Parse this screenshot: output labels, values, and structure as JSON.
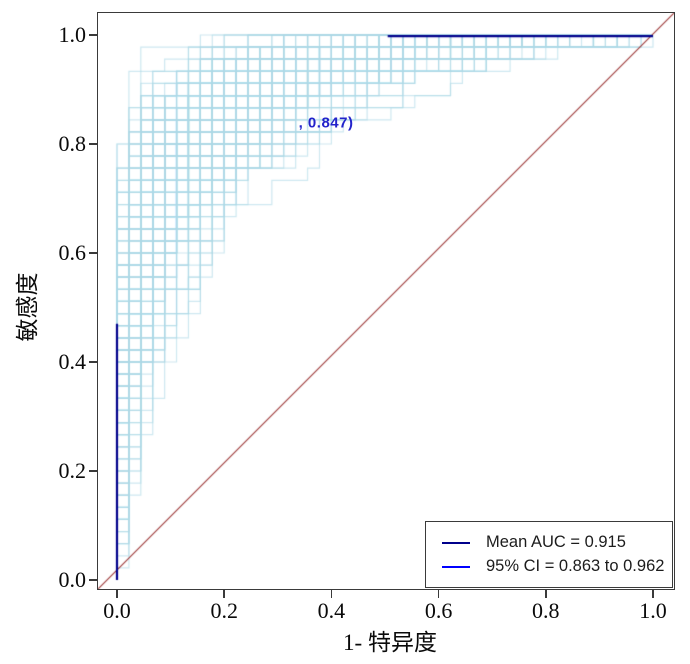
{
  "chart_data": {
    "type": "line",
    "subtype": "bootstrap-roc-curves",
    "title": "",
    "xlabel": "1- 特异度",
    "ylabel": "敏感度",
    "xlim": [
      0.0,
      1.0
    ],
    "ylim": [
      0.0,
      1.0
    ],
    "x_ticks": [
      "0.0",
      "0.2",
      "0.4",
      "0.6",
      "0.8",
      "1.0"
    ],
    "y_ticks": [
      "0.0",
      "0.2",
      "0.4",
      "0.6",
      "0.8",
      "1.0"
    ],
    "grid": false,
    "mean_auc": 0.915,
    "ci_low": 0.863,
    "ci_high": 0.962,
    "legend": {
      "position": "bottom-right",
      "entries": [
        {
          "label": "Mean AUC = 0.915",
          "color": "#00008B"
        },
        {
          "label": "95% CI = 0.863 to 0.962",
          "color": "#0000FF"
        }
      ]
    },
    "annotation": {
      "text": ", 0.847)",
      "x": 0.39,
      "y": 0.838,
      "color": "#2323CB"
    },
    "reference_line": {
      "from": [
        0.0,
        0.0
      ],
      "to": [
        1.0,
        1.0
      ],
      "color": "#9B3535"
    },
    "bootstrap_curves": {
      "count": 210,
      "color": "#ADD8E6",
      "auc_mean": 0.915,
      "auc_spread_low": 0.82,
      "auc_spread_high": 0.97,
      "cases_per_group": 45,
      "seed": 42
    },
    "mean_curve_color": "#00008B",
    "mean_curve_visible_segments": [
      {
        "type": "vertical",
        "x": 0.0,
        "y_from": 0.0,
        "y_to": 0.47
      },
      {
        "type": "horizontal",
        "y": 0.998,
        "x_from": 0.505,
        "x_to": 1.0
      }
    ],
    "axis_color": "#3a3a3a"
  }
}
